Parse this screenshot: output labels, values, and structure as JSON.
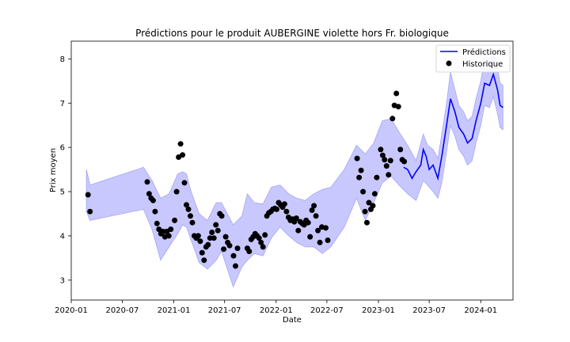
{
  "chart_data": {
    "type": "line",
    "title": "Prédictions pour le produit AUBERGINE violette hors Fr. biologique",
    "xlabel": "Date",
    "ylabel": "Prix moyen",
    "x_range": [
      "2020-01-01",
      "2024-04-25"
    ],
    "ylim": [
      2.55,
      8.4
    ],
    "x_ticks": [
      "2020-01-01",
      "2020-07-01",
      "2021-01-01",
      "2021-07-01",
      "2022-01-01",
      "2022-07-01",
      "2023-01-01",
      "2023-07-01",
      "2024-01-01"
    ],
    "x_tick_labels": [
      "2020-01",
      "2020-07",
      "2021-01",
      "2021-07",
      "2022-01",
      "2022-07",
      "2023-01",
      "2023-07",
      "2024-01"
    ],
    "y_ticks": [
      3,
      4,
      5,
      6,
      7,
      8
    ],
    "y_tick_labels": [
      "3",
      "4",
      "5",
      "6",
      "7",
      "8"
    ],
    "grid": false,
    "legend_position": "top-right",
    "colors": {
      "prediction_line": "#0000ff",
      "confidence_fill": "#c8c8ff",
      "confidence_edge": "#a5a5f5",
      "history_markers": "#000000"
    },
    "series": [
      {
        "name": "Prédictions",
        "kind": "line",
        "points": [
          [
            "2023-04-01",
            5.55
          ],
          [
            "2023-04-15",
            5.5
          ],
          [
            "2023-05-01",
            5.3
          ],
          [
            "2023-05-15",
            5.45
          ],
          [
            "2023-06-01",
            5.6
          ],
          [
            "2023-06-10",
            5.95
          ],
          [
            "2023-06-20",
            5.8
          ],
          [
            "2023-07-01",
            5.5
          ],
          [
            "2023-07-15",
            5.6
          ],
          [
            "2023-08-01",
            5.3
          ],
          [
            "2023-08-15",
            5.8
          ],
          [
            "2023-09-01",
            6.5
          ],
          [
            "2023-09-15",
            7.1
          ],
          [
            "2023-10-01",
            6.8
          ],
          [
            "2023-10-15",
            6.45
          ],
          [
            "2023-11-01",
            6.3
          ],
          [
            "2023-11-15",
            6.1
          ],
          [
            "2023-12-01",
            6.2
          ],
          [
            "2023-12-15",
            6.6
          ],
          [
            "2024-01-01",
            7.0
          ],
          [
            "2024-01-15",
            7.45
          ],
          [
            "2024-02-01",
            7.4
          ],
          [
            "2024-02-15",
            7.65
          ],
          [
            "2024-03-01",
            7.3
          ],
          [
            "2024-03-10",
            6.95
          ],
          [
            "2024-03-20",
            6.9
          ]
        ]
      },
      {
        "name": "Historique",
        "kind": "scatter",
        "points": [
          [
            "2020-03-01",
            4.93
          ],
          [
            "2020-03-08",
            4.55
          ],
          [
            "2020-09-28",
            5.22
          ],
          [
            "2020-10-05",
            4.95
          ],
          [
            "2020-10-12",
            4.85
          ],
          [
            "2020-10-19",
            4.8
          ],
          [
            "2020-10-26",
            4.55
          ],
          [
            "2020-11-02",
            4.28
          ],
          [
            "2020-11-09",
            4.15
          ],
          [
            "2020-11-16",
            4.05
          ],
          [
            "2020-11-23",
            4.1
          ],
          [
            "2020-11-30",
            3.98
          ],
          [
            "2020-12-07",
            4.1
          ],
          [
            "2020-12-14",
            4.0
          ],
          [
            "2020-12-21",
            4.15
          ],
          [
            "2021-01-04",
            4.35
          ],
          [
            "2021-01-11",
            5.0
          ],
          [
            "2021-01-18",
            5.78
          ],
          [
            "2021-01-25",
            6.08
          ],
          [
            "2021-02-01",
            5.83
          ],
          [
            "2021-02-08",
            5.2
          ],
          [
            "2021-02-15",
            4.7
          ],
          [
            "2021-02-22",
            4.6
          ],
          [
            "2021-03-01",
            4.45
          ],
          [
            "2021-03-08",
            4.3
          ],
          [
            "2021-03-15",
            4.0
          ],
          [
            "2021-03-22",
            3.95
          ],
          [
            "2021-03-29",
            4.0
          ],
          [
            "2021-04-05",
            3.88
          ],
          [
            "2021-04-12",
            3.62
          ],
          [
            "2021-04-19",
            3.45
          ],
          [
            "2021-04-26",
            3.75
          ],
          [
            "2021-05-03",
            3.8
          ],
          [
            "2021-05-10",
            3.95
          ],
          [
            "2021-05-17",
            4.08
          ],
          [
            "2021-05-24",
            3.95
          ],
          [
            "2021-05-31",
            4.25
          ],
          [
            "2021-06-07",
            4.12
          ],
          [
            "2021-06-14",
            4.5
          ],
          [
            "2021-06-21",
            4.45
          ],
          [
            "2021-06-28",
            3.7
          ],
          [
            "2021-07-05",
            3.98
          ],
          [
            "2021-07-12",
            3.85
          ],
          [
            "2021-07-19",
            3.78
          ],
          [
            "2021-08-02",
            3.55
          ],
          [
            "2021-08-09",
            3.32
          ],
          [
            "2021-08-16",
            3.72
          ],
          [
            "2021-09-20",
            3.72
          ],
          [
            "2021-09-27",
            3.65
          ],
          [
            "2021-10-04",
            3.92
          ],
          [
            "2021-10-11",
            3.98
          ],
          [
            "2021-10-18",
            4.05
          ],
          [
            "2021-10-25",
            4.0
          ],
          [
            "2021-11-01",
            3.95
          ],
          [
            "2021-11-08",
            3.85
          ],
          [
            "2021-11-15",
            3.75
          ],
          [
            "2021-11-22",
            4.02
          ],
          [
            "2021-11-29",
            4.45
          ],
          [
            "2021-12-06",
            4.52
          ],
          [
            "2021-12-13",
            4.55
          ],
          [
            "2021-12-20",
            4.6
          ],
          [
            "2021-12-27",
            4.62
          ],
          [
            "2022-01-03",
            4.6
          ],
          [
            "2022-01-10",
            4.75
          ],
          [
            "2022-01-17",
            4.7
          ],
          [
            "2022-01-24",
            4.65
          ],
          [
            "2022-01-31",
            4.72
          ],
          [
            "2022-02-07",
            4.55
          ],
          [
            "2022-02-14",
            4.42
          ],
          [
            "2022-02-21",
            4.35
          ],
          [
            "2022-02-28",
            4.38
          ],
          [
            "2022-03-07",
            4.32
          ],
          [
            "2022-03-14",
            4.4
          ],
          [
            "2022-03-21",
            4.12
          ],
          [
            "2022-03-28",
            4.32
          ],
          [
            "2022-04-04",
            4.28
          ],
          [
            "2022-04-11",
            4.25
          ],
          [
            "2022-04-18",
            4.35
          ],
          [
            "2022-04-25",
            4.3
          ],
          [
            "2022-05-02",
            3.98
          ],
          [
            "2022-05-09",
            4.58
          ],
          [
            "2022-05-16",
            4.68
          ],
          [
            "2022-05-23",
            4.45
          ],
          [
            "2022-05-30",
            4.12
          ],
          [
            "2022-06-06",
            3.85
          ],
          [
            "2022-06-13",
            4.2
          ],
          [
            "2022-06-27",
            4.18
          ],
          [
            "2022-07-04",
            3.9
          ],
          [
            "2022-10-17",
            5.75
          ],
          [
            "2022-10-24",
            5.32
          ],
          [
            "2022-10-31",
            5.48
          ],
          [
            "2022-11-07",
            5.0
          ],
          [
            "2022-11-14",
            4.55
          ],
          [
            "2022-11-21",
            4.3
          ],
          [
            "2022-11-28",
            4.75
          ],
          [
            "2022-12-05",
            4.6
          ],
          [
            "2022-12-12",
            4.68
          ],
          [
            "2022-12-19",
            4.95
          ],
          [
            "2022-12-26",
            5.32
          ],
          [
            "2023-01-09",
            5.95
          ],
          [
            "2023-01-16",
            5.82
          ],
          [
            "2023-01-23",
            5.72
          ],
          [
            "2023-01-30",
            5.58
          ],
          [
            "2023-02-06",
            5.38
          ],
          [
            "2023-02-13",
            5.7
          ],
          [
            "2023-02-20",
            6.65
          ],
          [
            "2023-02-27",
            6.95
          ],
          [
            "2023-03-06",
            7.22
          ],
          [
            "2023-03-13",
            6.92
          ],
          [
            "2023-03-20",
            5.95
          ],
          [
            "2023-03-27",
            5.72
          ],
          [
            "2023-04-03",
            5.68
          ]
        ]
      },
      {
        "name": "",
        "kind": "confidence_band",
        "upper": [
          [
            "2020-02-24",
            5.5
          ],
          [
            "2020-03-08",
            5.15
          ],
          [
            "2020-09-15",
            5.55
          ],
          [
            "2020-10-15",
            5.25
          ],
          [
            "2020-11-15",
            4.85
          ],
          [
            "2020-12-15",
            4.95
          ],
          [
            "2021-01-15",
            5.4
          ],
          [
            "2021-02-01",
            5.45
          ],
          [
            "2021-02-15",
            5.4
          ],
          [
            "2021-03-01",
            5.05
          ],
          [
            "2021-04-01",
            4.5
          ],
          [
            "2021-05-01",
            4.35
          ],
          [
            "2021-06-01",
            4.75
          ],
          [
            "2021-06-20",
            4.75
          ],
          [
            "2021-08-01",
            4.25
          ],
          [
            "2021-09-01",
            4.45
          ],
          [
            "2021-09-20",
            4.95
          ],
          [
            "2021-10-15",
            4.75
          ],
          [
            "2021-11-15",
            4.72
          ],
          [
            "2021-12-15",
            5.1
          ],
          [
            "2022-01-15",
            5.15
          ],
          [
            "2022-02-15",
            4.95
          ],
          [
            "2022-03-15",
            4.85
          ],
          [
            "2022-04-15",
            4.8
          ],
          [
            "2022-05-15",
            4.95
          ],
          [
            "2022-06-15",
            5.05
          ],
          [
            "2022-07-15",
            5.1
          ],
          [
            "2022-09-01",
            5.5
          ],
          [
            "2022-10-15",
            6.05
          ],
          [
            "2022-11-15",
            5.85
          ],
          [
            "2022-12-15",
            6.1
          ],
          [
            "2023-01-15",
            6.6
          ],
          [
            "2023-02-15",
            6.65
          ],
          [
            "2023-03-15",
            6.35
          ],
          [
            "2023-04-15",
            6.05
          ],
          [
            "2023-05-15",
            5.7
          ],
          [
            "2023-06-10",
            6.3
          ],
          [
            "2023-06-25",
            6.05
          ],
          [
            "2023-07-15",
            5.95
          ],
          [
            "2023-08-01",
            5.75
          ],
          [
            "2023-08-15",
            6.3
          ],
          [
            "2023-09-01",
            7.0
          ],
          [
            "2023-09-15",
            7.7
          ],
          [
            "2023-10-01",
            7.3
          ],
          [
            "2023-10-15",
            6.95
          ],
          [
            "2023-11-01",
            6.8
          ],
          [
            "2023-11-15",
            6.6
          ],
          [
            "2023-12-01",
            6.7
          ],
          [
            "2023-12-15",
            7.1
          ],
          [
            "2024-01-01",
            7.5
          ],
          [
            "2024-01-15",
            8.0
          ],
          [
            "2024-02-01",
            7.9
          ],
          [
            "2024-02-15",
            8.15
          ],
          [
            "2024-03-01",
            7.8
          ],
          [
            "2024-03-10",
            7.45
          ],
          [
            "2024-03-20",
            7.4
          ]
        ],
        "lower": [
          [
            "2020-02-24",
            4.55
          ],
          [
            "2020-03-08",
            4.35
          ],
          [
            "2020-09-15",
            4.6
          ],
          [
            "2020-10-15",
            4.15
          ],
          [
            "2020-11-15",
            3.45
          ],
          [
            "2020-12-15",
            3.75
          ],
          [
            "2021-01-15",
            4.05
          ],
          [
            "2021-02-01",
            4.25
          ],
          [
            "2021-02-15",
            4.2
          ],
          [
            "2021-03-01",
            3.95
          ],
          [
            "2021-04-01",
            3.4
          ],
          [
            "2021-05-01",
            3.25
          ],
          [
            "2021-06-01",
            3.45
          ],
          [
            "2021-06-20",
            3.65
          ],
          [
            "2021-08-01",
            2.85
          ],
          [
            "2021-09-01",
            3.3
          ],
          [
            "2021-09-20",
            3.45
          ],
          [
            "2021-10-15",
            3.6
          ],
          [
            "2021-11-15",
            3.55
          ],
          [
            "2021-12-15",
            3.95
          ],
          [
            "2022-01-15",
            4.2
          ],
          [
            "2022-02-15",
            4.0
          ],
          [
            "2022-03-15",
            3.85
          ],
          [
            "2022-04-15",
            3.75
          ],
          [
            "2022-05-15",
            3.75
          ],
          [
            "2022-06-15",
            3.6
          ],
          [
            "2022-07-15",
            3.75
          ],
          [
            "2022-09-01",
            4.2
          ],
          [
            "2022-10-15",
            4.85
          ],
          [
            "2022-11-15",
            4.35
          ],
          [
            "2022-12-15",
            4.75
          ],
          [
            "2023-01-15",
            5.2
          ],
          [
            "2023-02-15",
            5.35
          ],
          [
            "2023-03-15",
            5.15
          ],
          [
            "2023-04-15",
            4.95
          ],
          [
            "2023-05-15",
            4.8
          ],
          [
            "2023-06-10",
            5.25
          ],
          [
            "2023-06-25",
            5.15
          ],
          [
            "2023-07-15",
            5.0
          ],
          [
            "2023-08-01",
            4.85
          ],
          [
            "2023-08-15",
            5.2
          ],
          [
            "2023-09-01",
            5.9
          ],
          [
            "2023-09-15",
            6.5
          ],
          [
            "2023-10-01",
            6.25
          ],
          [
            "2023-10-15",
            5.95
          ],
          [
            "2023-11-01",
            5.8
          ],
          [
            "2023-11-15",
            5.6
          ],
          [
            "2023-12-01",
            5.7
          ],
          [
            "2023-12-15",
            6.1
          ],
          [
            "2024-01-01",
            6.5
          ],
          [
            "2024-01-15",
            6.95
          ],
          [
            "2024-02-01",
            6.9
          ],
          [
            "2024-02-15",
            7.15
          ],
          [
            "2024-03-01",
            6.75
          ],
          [
            "2024-03-10",
            6.45
          ],
          [
            "2024-03-20",
            6.4
          ]
        ]
      }
    ]
  }
}
